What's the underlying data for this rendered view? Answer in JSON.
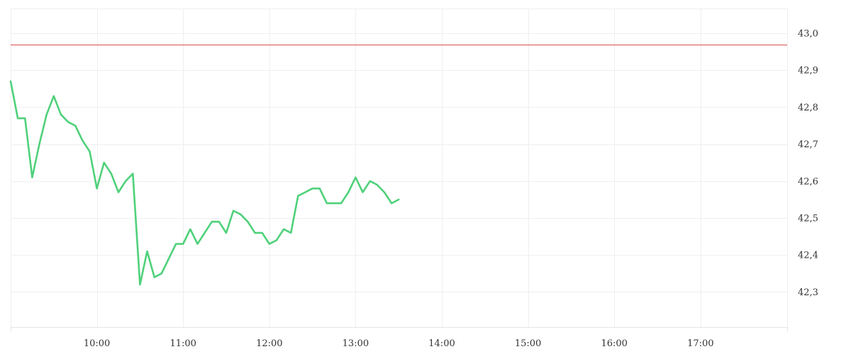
{
  "chart_data": {
    "type": "line",
    "title": "",
    "xlabel": "",
    "ylabel": "",
    "x_axis": {
      "type": "time",
      "range": [
        "09:00",
        "18:00"
      ],
      "ticks": [
        "10:00",
        "11:00",
        "12:00",
        "13:00",
        "14:00",
        "15:00",
        "16:00",
        "17:00"
      ]
    },
    "y_axis": {
      "position": "right",
      "range": [
        42.2,
        45.03
      ],
      "ticks": [
        42.3,
        42.4,
        42.5,
        42.6,
        42.7,
        42.8,
        42.9,
        43.0
      ],
      "tick_labels": [
        "42,3",
        "42,4",
        "42,5",
        "42,6",
        "42,7",
        "42,8",
        "42,9",
        "43,0"
      ],
      "decimal_separator": ","
    },
    "grid": true,
    "legend": "none",
    "reference_line": {
      "value": 42.97,
      "color": "#e06666"
    },
    "series": [
      {
        "color": "#4fd17a",
        "points": [
          [
            "09:00",
            42.87
          ],
          [
            "09:05",
            42.77
          ],
          [
            "09:10",
            42.77
          ],
          [
            "09:15",
            42.61
          ],
          [
            "09:20",
            42.7
          ],
          [
            "09:25",
            42.78
          ],
          [
            "09:30",
            42.83
          ],
          [
            "09:35",
            42.78
          ],
          [
            "09:40",
            42.76
          ],
          [
            "09:45",
            42.75
          ],
          [
            "09:50",
            42.71
          ],
          [
            "09:55",
            42.68
          ],
          [
            "10:00",
            42.58
          ],
          [
            "10:05",
            42.65
          ],
          [
            "10:10",
            42.62
          ],
          [
            "10:15",
            42.57
          ],
          [
            "10:20",
            42.6
          ],
          [
            "10:25",
            42.62
          ],
          [
            "10:30",
            42.32
          ],
          [
            "10:35",
            42.41
          ],
          [
            "10:40",
            42.34
          ],
          [
            "10:45",
            42.35
          ],
          [
            "10:50",
            42.39
          ],
          [
            "10:55",
            42.43
          ],
          [
            "11:00",
            42.43
          ],
          [
            "11:05",
            42.47
          ],
          [
            "11:10",
            42.43
          ],
          [
            "11:15",
            42.46
          ],
          [
            "11:20",
            42.49
          ],
          [
            "11:25",
            42.49
          ],
          [
            "11:30",
            42.46
          ],
          [
            "11:35",
            42.52
          ],
          [
            "11:40",
            42.51
          ],
          [
            "11:45",
            42.49
          ],
          [
            "11:50",
            42.46
          ],
          [
            "11:55",
            42.46
          ],
          [
            "12:00",
            42.43
          ],
          [
            "12:05",
            42.44
          ],
          [
            "12:10",
            42.47
          ],
          [
            "12:15",
            42.46
          ],
          [
            "12:20",
            42.56
          ],
          [
            "12:25",
            42.57
          ],
          [
            "12:30",
            42.58
          ],
          [
            "12:35",
            42.58
          ],
          [
            "12:40",
            42.54
          ],
          [
            "12:45",
            42.54
          ],
          [
            "12:50",
            42.54
          ],
          [
            "12:55",
            42.57
          ],
          [
            "13:00",
            42.61
          ],
          [
            "13:05",
            42.57
          ],
          [
            "13:10",
            42.6
          ],
          [
            "13:15",
            42.59
          ],
          [
            "13:20",
            42.57
          ],
          [
            "13:25",
            42.54
          ],
          [
            "13:30",
            42.55
          ]
        ]
      }
    ]
  }
}
